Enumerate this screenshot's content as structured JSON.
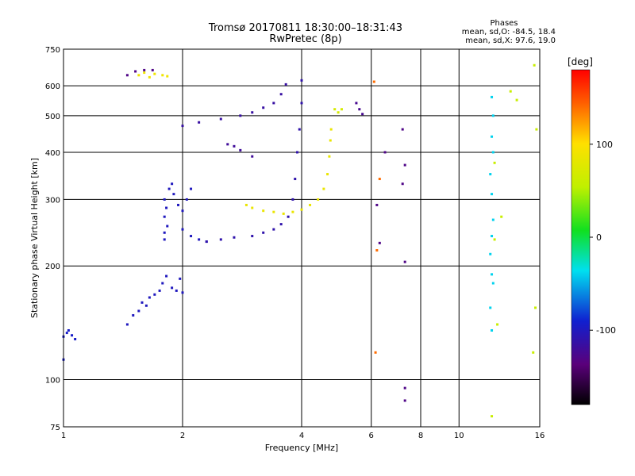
{
  "header": {
    "title_line1": "Tromsø 20170811 18:30:00–18:31:43",
    "title_line2": "RwPretec (8p)"
  },
  "stats": {
    "heading": "Phases",
    "line_o": "mean, sd,O: -84.5, 18.4",
    "line_x": "mean, sd,X:  97.6, 19.0"
  },
  "chart_data": {
    "type": "scatter",
    "xlabel": "Frequency [MHz]",
    "ylabel": "Stationary phase Virtual Height [km]",
    "x_scale": "log",
    "y_scale": "log",
    "xlim": [
      1,
      16
    ],
    "ylim": [
      75,
      750
    ],
    "x_ticks": [
      1,
      2,
      4,
      6,
      8,
      10,
      16
    ],
    "y_ticks": [
      75,
      100,
      200,
      300,
      400,
      500,
      600,
      750
    ],
    "grid": true,
    "colorbar": {
      "label": "[deg]",
      "range": [
        -180,
        180
      ],
      "ticks": [
        100,
        0,
        -100
      ]
    },
    "series": [
      {
        "values": [
          [
            1.0,
            130
          ],
          [
            1.02,
            133
          ],
          [
            1.05,
            131
          ],
          [
            1.07,
            128
          ],
          [
            1.0,
            113
          ],
          [
            1.03,
            135
          ]
        ],
        "phase": -95
      },
      {
        "values": [
          [
            1.55,
            640
          ],
          [
            1.6,
            650
          ],
          [
            1.65,
            632
          ],
          [
            1.7,
            645
          ],
          [
            1.78,
            640
          ],
          [
            1.83,
            636
          ]
        ],
        "phase": 90
      },
      {
        "values": [
          [
            1.45,
            640
          ],
          [
            1.52,
            655
          ],
          [
            1.6,
            660
          ],
          [
            1.68,
            660
          ]
        ],
        "phase": -130
      },
      {
        "values": [
          [
            1.45,
            140
          ],
          [
            1.5,
            148
          ],
          [
            1.55,
            152
          ],
          [
            1.58,
            160
          ],
          [
            1.62,
            157
          ],
          [
            1.65,
            165
          ],
          [
            1.7,
            168
          ],
          [
            1.75,
            172
          ],
          [
            1.78,
            180
          ],
          [
            1.82,
            188
          ],
          [
            1.88,
            175
          ],
          [
            1.93,
            172
          ],
          [
            1.97,
            185
          ],
          [
            2.0,
            170
          ]
        ],
        "phase": -100
      },
      {
        "values": [
          [
            1.8,
            235
          ],
          [
            1.8,
            245
          ],
          [
            1.83,
            255
          ],
          [
            1.8,
            270
          ],
          [
            1.82,
            285
          ],
          [
            1.8,
            300
          ],
          [
            1.85,
            320
          ],
          [
            1.88,
            330
          ],
          [
            1.9,
            310
          ],
          [
            1.95,
            290
          ],
          [
            2.0,
            280
          ],
          [
            2.05,
            300
          ],
          [
            2.1,
            320
          ],
          [
            2.0,
            250
          ],
          [
            2.1,
            240
          ],
          [
            2.2,
            235
          ],
          [
            2.3,
            232
          ]
        ],
        "phase": -100
      },
      {
        "values": [
          [
            2.3,
            232
          ],
          [
            2.5,
            235
          ],
          [
            2.7,
            238
          ],
          [
            3.0,
            240
          ],
          [
            3.2,
            245
          ],
          [
            3.4,
            250
          ],
          [
            3.55,
            258
          ],
          [
            3.7,
            270
          ],
          [
            3.8,
            300
          ],
          [
            3.85,
            340
          ],
          [
            3.9,
            400
          ],
          [
            3.95,
            460
          ],
          [
            4.0,
            540
          ],
          [
            4.0,
            620
          ]
        ],
        "phase": -110
      },
      {
        "values": [
          [
            2.0,
            470
          ],
          [
            2.2,
            480
          ],
          [
            2.5,
            490
          ],
          [
            2.8,
            500
          ],
          [
            3.0,
            510
          ],
          [
            3.2,
            525
          ],
          [
            3.4,
            540
          ],
          [
            3.55,
            570
          ],
          [
            3.65,
            605
          ]
        ],
        "phase": -115
      },
      {
        "values": [
          [
            2.6,
            420
          ],
          [
            2.7,
            415
          ],
          [
            2.8,
            405
          ],
          [
            3.0,
            390
          ]
        ],
        "phase": -120
      },
      {
        "values": [
          [
            2.9,
            290
          ],
          [
            3.0,
            285
          ],
          [
            3.2,
            280
          ],
          [
            3.4,
            278
          ]
        ],
        "phase": 85
      },
      {
        "values": [
          [
            3.6,
            275
          ],
          [
            3.8,
            278
          ],
          [
            4.0,
            282
          ],
          [
            4.2,
            290
          ],
          [
            4.4,
            300
          ],
          [
            4.55,
            320
          ],
          [
            4.65,
            350
          ],
          [
            4.7,
            390
          ],
          [
            4.73,
            430
          ],
          [
            4.75,
            460
          ]
        ],
        "phase": 85
      },
      {
        "values": [
          [
            4.85,
            520
          ],
          [
            4.95,
            510
          ],
          [
            5.05,
            520
          ]
        ],
        "phase": 70
      },
      {
        "values": [
          [
            5.5,
            540
          ],
          [
            5.6,
            520
          ],
          [
            5.7,
            505
          ]
        ],
        "phase": -125
      },
      {
        "values": [
          [
            6.1,
            615
          ],
          [
            6.15,
            118
          ],
          [
            6.2,
            220
          ],
          [
            6.3,
            340
          ]
        ],
        "phase": 140
      },
      {
        "values": [
          [
            6.2,
            290
          ],
          [
            6.3,
            230
          ],
          [
            6.5,
            400
          ],
          [
            7.2,
            460
          ],
          [
            7.3,
            370
          ],
          [
            7.2,
            330
          ],
          [
            7.3,
            205
          ],
          [
            7.3,
            95
          ],
          [
            7.3,
            88
          ]
        ],
        "phase": -130
      },
      {
        "values": [
          [
            12.1,
            560
          ],
          [
            12.2,
            500
          ],
          [
            12.1,
            440
          ],
          [
            12.2,
            400
          ],
          [
            12.0,
            350
          ],
          [
            12.1,
            310
          ],
          [
            12.2,
            265
          ],
          [
            12.1,
            240
          ],
          [
            12.0,
            215
          ],
          [
            12.1,
            190
          ],
          [
            12.2,
            180
          ],
          [
            12.0,
            155
          ],
          [
            12.1,
            135
          ]
        ],
        "phase": -40
      },
      {
        "values": [
          [
            12.3,
            375
          ],
          [
            12.3,
            235
          ],
          [
            12.5,
            140
          ],
          [
            12.8,
            270
          ],
          [
            13.5,
            580
          ],
          [
            14.0,
            550
          ],
          [
            15.5,
            680
          ],
          [
            15.7,
            460
          ],
          [
            15.6,
            155
          ],
          [
            15.4,
            118
          ],
          [
            12.1,
            80
          ]
        ],
        "phase": 60
      }
    ]
  }
}
